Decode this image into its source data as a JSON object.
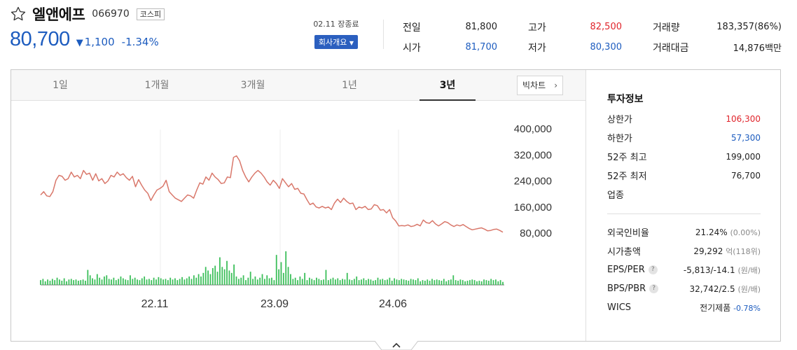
{
  "stock": {
    "name": "엘앤에프",
    "code": "066970",
    "market": "코스피",
    "price": "80,700",
    "change_arrow": "▼",
    "change_amount": "1,100",
    "change_percent": "-1.34%",
    "close_status": "02.11 장종료",
    "company_button": "회사개요"
  },
  "summary": [
    {
      "label": "전일",
      "value": "81,800",
      "color": "#222222"
    },
    {
      "label": "시가",
      "value": "81,700",
      "color": "#1d5cbf"
    },
    {
      "label": "고가",
      "value": "82,500",
      "color": "#e0242b"
    },
    {
      "label": "저가",
      "value": "80,300",
      "color": "#1d5cbf"
    },
    {
      "label": "거래량",
      "value": "183,357(86%)",
      "color": "#222222"
    },
    {
      "label": "거래대금",
      "value": "14,876백만",
      "color": "#222222"
    }
  ],
  "tabs": [
    "1일",
    "1개월",
    "3개월",
    "1년",
    "3년"
  ],
  "active_tab": "3년",
  "candle_button": "빅차트",
  "chart_data": {
    "type": "line",
    "series": [
      {
        "color": "#d9786b",
        "values": [
          195000,
          205000,
          192000,
          190000,
          205000,
          240000,
          255000,
          252000,
          240000,
          245000,
          265000,
          250000,
          255000,
          245000,
          270000,
          258000,
          262000,
          240000,
          260000,
          238000,
          245000,
          230000,
          238000,
          255000,
          250000,
          265000,
          255000,
          260000,
          248000,
          240000,
          252000,
          220000,
          242000,
          225000,
          210000,
          200000,
          178000,
          195000,
          210000,
          215000,
          222000,
          240000,
          205000,
          195000,
          185000,
          180000,
          175000,
          185000,
          195000,
          192000,
          185000,
          210000,
          232000,
          228000,
          250000,
          240000,
          262000,
          250000,
          242000,
          230000,
          232000,
          250000,
          248000,
          310000,
          315000,
          300000,
          270000,
          250000,
          235000,
          250000,
          262000,
          270000,
          262000,
          250000,
          235000,
          225000,
          240000,
          230000,
          215000,
          245000,
          232000,
          220000,
          230000,
          212000,
          215000,
          200000,
          198000,
          180000,
          165000,
          170000,
          158000,
          155000,
          160000,
          155000,
          158000,
          150000,
          170000,
          182000,
          172000,
          185000,
          175000,
          168000,
          170000,
          150000,
          158000,
          155000,
          160000,
          150000,
          152000,
          165000,
          162000,
          148000,
          150000,
          140000,
          150000,
          125000,
          115000,
          100000,
          101000,
          100000,
          103000,
          98000,
          100000,
          105000,
          100000,
          118000,
          110000,
          108000,
          116000,
          106000,
          100000,
          106000,
          113000,
          110000,
          103000,
          98000,
          103000,
          100000,
          104000,
          98000,
          92000,
          88000,
          90000,
          92000,
          94000,
          90000,
          85000,
          86000,
          89000,
          90000,
          86000,
          80700
        ]
      }
    ],
    "volume": [
      8,
      10,
      6,
      9,
      7,
      10,
      8,
      12,
      9,
      7,
      11,
      6,
      9,
      10,
      8,
      9,
      7,
      8,
      9,
      7,
      25,
      16,
      11,
      9,
      18,
      12,
      9,
      14,
      16,
      10,
      9,
      12,
      8,
      10,
      14,
      11,
      9,
      8,
      16,
      10,
      12,
      9,
      8,
      11,
      14,
      9,
      10,
      8,
      12,
      9,
      13,
      11,
      9,
      10,
      8,
      12,
      9,
      11,
      8,
      10,
      13,
      9,
      11,
      14,
      10,
      16,
      12,
      18,
      14,
      20,
      30,
      24,
      18,
      28,
      32,
      22,
      46,
      30,
      26,
      40,
      24,
      20,
      34,
      14,
      10,
      12,
      16,
      8,
      12,
      22,
      10,
      14,
      9,
      12,
      18,
      10,
      16,
      11,
      12,
      8,
      50,
      26,
      38,
      20,
      56,
      30,
      18,
      10,
      12,
      8,
      14,
      10,
      20,
      8,
      12,
      10,
      8,
      12,
      10,
      8,
      9,
      25,
      8,
      10,
      12,
      9,
      11,
      8,
      10,
      9,
      20,
      9,
      8,
      10,
      14,
      8,
      9,
      11,
      8,
      10,
      9,
      7,
      8,
      12,
      9,
      10,
      8,
      9,
      12,
      7,
      11,
      9,
      8,
      10,
      9,
      8,
      7,
      10,
      9,
      8,
      11,
      6,
      8,
      7,
      9,
      7,
      10,
      8,
      9,
      8,
      7,
      10,
      6,
      8,
      9,
      16,
      8,
      7,
      9,
      8,
      6,
      7,
      8,
      9,
      8,
      6,
      7,
      6,
      9,
      8,
      7,
      10,
      8,
      9,
      6,
      8,
      5
    ],
    "ylim": [
      80000,
      400000
    ],
    "y_ticks": [
      "400,000",
      "320,000",
      "240,000",
      "160,000",
      "80,000"
    ],
    "x_ticks": [
      "22.11",
      "23.09",
      "24.06"
    ]
  },
  "side": {
    "title": "투자정보",
    "rows": [
      {
        "label": "상한가",
        "value": "106,300",
        "color": "#e0242b",
        "help": false,
        "sub": ""
      },
      {
        "label": "하한가",
        "value": "57,300",
        "color": "#1d5cbf",
        "help": false,
        "sub": ""
      },
      {
        "label": "52주 최고",
        "value": "199,000",
        "color": "#222222",
        "help": false,
        "sub": ""
      },
      {
        "label": "52주 최저",
        "value": "76,700",
        "color": "#222222",
        "help": false,
        "sub": ""
      },
      {
        "label": "업종",
        "value": "",
        "color": "#222222",
        "help": false,
        "sub": ""
      }
    ],
    "rows2": [
      {
        "label": "외국인비율",
        "value": "21.24%",
        "sub": "(0.00%)",
        "color": "#222222",
        "help": false
      },
      {
        "label": "시가총액",
        "value": "29,292",
        "sub": "억(118위)",
        "color": "#222222",
        "help": false
      },
      {
        "label": "EPS/PER",
        "value": "-5,813/-14.1",
        "sub": "(원/배)",
        "color": "#222222",
        "help": true
      },
      {
        "label": "BPS/PBR",
        "value": "32,742/2.5",
        "sub": "(원/배)",
        "color": "#222222",
        "help": true
      },
      {
        "label": "WICS",
        "value": "전기제품",
        "sub": "-0.78%",
        "color": "#222222",
        "help": false
      }
    ]
  },
  "icons": {
    "star": "star-outline-icon",
    "candle_chevron": "chevron-right-icon",
    "collapse": "chevron-up-icon",
    "help": "question-icon"
  },
  "colors": {
    "accent_blue": "#1d5cbf",
    "accent_red": "#e0242b",
    "line": "#d9786b",
    "volume": "#3cbf5a"
  }
}
